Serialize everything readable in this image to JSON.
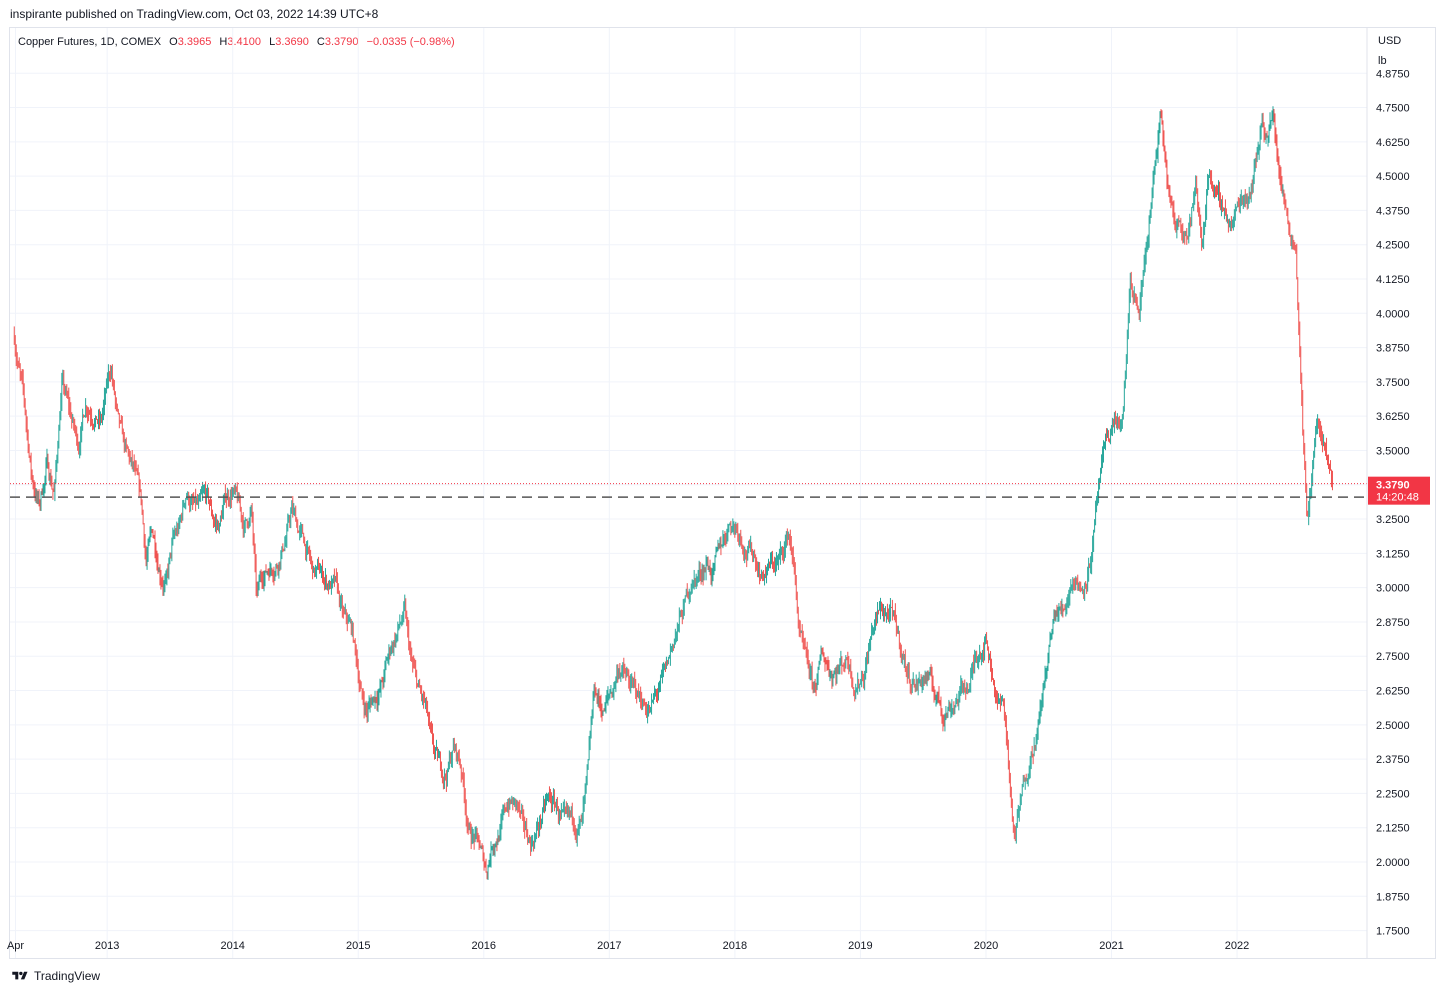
{
  "published": "inspirante published on TradingView.com, Oct 03, 2022 14:39 UTC+8",
  "legend": {
    "symbol": "Copper Futures, 1D, COMEX",
    "o_label": "O",
    "o_value": "3.3965",
    "h_label": "H",
    "h_value": "3.4100",
    "l_label": "L",
    "l_value": "3.3690",
    "c_label": "C",
    "c_value": "3.3790",
    "change": "−0.0335 (−0.98%)"
  },
  "price_axis": {
    "currency": "USD",
    "unit": "lb"
  },
  "last_price": {
    "value": "3.3790",
    "countdown": "14:20:48"
  },
  "footer": {
    "brand": "TradingView"
  },
  "colors": {
    "up": "#26a69a",
    "down": "#ef5350",
    "grid": "#f0f3fa",
    "last_label_bg": "#f23645",
    "level_line": "#555555"
  },
  "chart_data": {
    "type": "candlestick",
    "symbol": "Copper Futures",
    "interval": "1D",
    "y_unit": "USD/lb",
    "ylim": [
      1.65,
      5.04
    ],
    "y_ticks": [
      1.75,
      1.875,
      2.0,
      2.125,
      2.25,
      2.375,
      2.5,
      2.625,
      2.75,
      2.875,
      3.0,
      3.125,
      3.25,
      3.375,
      3.5,
      3.625,
      3.75,
      3.875,
      4.0,
      4.125,
      4.25,
      4.375,
      4.5,
      4.625,
      4.75,
      4.875
    ],
    "y_tick_labels": [
      "1.7500",
      "1.8750",
      "2.0000",
      "2.1250",
      "2.2500",
      "2.3750",
      "2.5000",
      "2.6250",
      "2.7500",
      "2.8750",
      "3.0000",
      "3.1250",
      "3.2500",
      "3.3750",
      "3.5000",
      "3.6250",
      "3.7500",
      "3.8750",
      "4.0000",
      "4.1250",
      "4.2500",
      "4.3750",
      "4.5000",
      "4.6250",
      "4.7500",
      "4.8750"
    ],
    "x_range": [
      2012.25,
      2022.82
    ],
    "x_ticks": [
      2012.27,
      2013,
      2014,
      2015,
      2016,
      2017,
      2018,
      2019,
      2020,
      2021,
      2022
    ],
    "x_tick_labels": [
      "Apr",
      "2013",
      "2014",
      "2015",
      "2016",
      "2017",
      "2018",
      "2019",
      "2020",
      "2021",
      "2022"
    ],
    "horizontal_level": 3.33,
    "last_close": 3.379,
    "price_path": [
      [
        2012.26,
        3.92
      ],
      [
        2012.33,
        3.7
      ],
      [
        2012.4,
        3.4
      ],
      [
        2012.46,
        3.3
      ],
      [
        2012.52,
        3.45
      ],
      [
        2012.58,
        3.35
      ],
      [
        2012.64,
        3.75
      ],
      [
        2012.71,
        3.62
      ],
      [
        2012.77,
        3.52
      ],
      [
        2012.83,
        3.68
      ],
      [
        2012.89,
        3.65
      ],
      [
        2012.95,
        3.6
      ],
      [
        2013.03,
        3.8
      ],
      [
        2013.09,
        3.58
      ],
      [
        2013.15,
        3.48
      ],
      [
        2013.21,
        3.42
      ],
      [
        2013.27,
        3.3
      ],
      [
        2013.31,
        3.1
      ],
      [
        2013.36,
        3.2
      ],
      [
        2013.42,
        3.08
      ],
      [
        2013.47,
        3.02
      ],
      [
        2013.52,
        3.15
      ],
      [
        2013.58,
        3.22
      ],
      [
        2013.63,
        3.35
      ],
      [
        2013.68,
        3.3
      ],
      [
        2013.73,
        3.28
      ],
      [
        2013.79,
        3.32
      ],
      [
        2013.84,
        3.25
      ],
      [
        2013.89,
        3.22
      ],
      [
        2013.94,
        3.32
      ],
      [
        2014.0,
        3.36
      ],
      [
        2014.04,
        3.3
      ],
      [
        2014.09,
        3.22
      ],
      [
        2014.15,
        3.28
      ],
      [
        2014.19,
        2.95
      ],
      [
        2014.24,
        3.05
      ],
      [
        2014.3,
        3.08
      ],
      [
        2014.35,
        3.1
      ],
      [
        2014.42,
        3.18
      ],
      [
        2014.47,
        3.28
      ],
      [
        2014.52,
        3.22
      ],
      [
        2014.58,
        3.15
      ],
      [
        2014.64,
        3.05
      ],
      [
        2014.7,
        3.05
      ],
      [
        2014.76,
        3.02
      ],
      [
        2014.82,
        3.0
      ],
      [
        2014.88,
        2.88
      ],
      [
        2014.95,
        2.84
      ],
      [
        2015.03,
        2.6
      ],
      [
        2015.07,
        2.55
      ],
      [
        2015.12,
        2.6
      ],
      [
        2015.19,
        2.65
      ],
      [
        2015.26,
        2.78
      ],
      [
        2015.32,
        2.85
      ],
      [
        2015.37,
        2.9
      ],
      [
        2015.42,
        2.72
      ],
      [
        2015.48,
        2.62
      ],
      [
        2015.54,
        2.55
      ],
      [
        2015.58,
        2.42
      ],
      [
        2015.63,
        2.35
      ],
      [
        2015.7,
        2.32
      ],
      [
        2015.76,
        2.42
      ],
      [
        2015.82,
        2.35
      ],
      [
        2015.88,
        2.12
      ],
      [
        2015.94,
        2.08
      ],
      [
        2016.02,
        1.97
      ],
      [
        2016.07,
        2.08
      ],
      [
        2016.13,
        2.12
      ],
      [
        2016.2,
        2.22
      ],
      [
        2016.27,
        2.2
      ],
      [
        2016.32,
        2.1
      ],
      [
        2016.38,
        2.07
      ],
      [
        2016.45,
        2.15
      ],
      [
        2016.51,
        2.22
      ],
      [
        2016.58,
        2.2
      ],
      [
        2016.65,
        2.12
      ],
      [
        2016.71,
        2.14
      ],
      [
        2016.78,
        2.13
      ],
      [
        2016.83,
        2.3
      ],
      [
        2016.88,
        2.62
      ],
      [
        2016.95,
        2.55
      ],
      [
        2017.02,
        2.62
      ],
      [
        2017.08,
        2.72
      ],
      [
        2017.14,
        2.66
      ],
      [
        2017.2,
        2.62
      ],
      [
        2017.27,
        2.58
      ],
      [
        2017.33,
        2.56
      ],
      [
        2017.39,
        2.62
      ],
      [
        2017.45,
        2.68
      ],
      [
        2017.52,
        2.82
      ],
      [
        2017.58,
        2.9
      ],
      [
        2017.65,
        3.02
      ],
      [
        2017.72,
        3.05
      ],
      [
        2017.78,
        3.1
      ],
      [
        2017.83,
        3.05
      ],
      [
        2017.89,
        3.15
      ],
      [
        2017.96,
        3.25
      ],
      [
        2018.03,
        3.22
      ],
      [
        2018.09,
        3.15
      ],
      [
        2018.15,
        3.12
      ],
      [
        2018.22,
        3.05
      ],
      [
        2018.29,
        3.08
      ],
      [
        2018.36,
        3.1
      ],
      [
        2018.43,
        3.2
      ],
      [
        2018.47,
        3.08
      ],
      [
        2018.51,
        2.85
      ],
      [
        2018.56,
        2.72
      ],
      [
        2018.63,
        2.62
      ],
      [
        2018.7,
        2.75
      ],
      [
        2018.77,
        2.7
      ],
      [
        2018.84,
        2.72
      ],
      [
        2018.9,
        2.75
      ],
      [
        2018.96,
        2.65
      ],
      [
        2019.03,
        2.7
      ],
      [
        2019.1,
        2.86
      ],
      [
        2019.17,
        2.92
      ],
      [
        2019.24,
        2.9
      ],
      [
        2019.31,
        2.8
      ],
      [
        2019.38,
        2.68
      ],
      [
        2019.45,
        2.65
      ],
      [
        2019.52,
        2.68
      ],
      [
        2019.59,
        2.62
      ],
      [
        2019.66,
        2.55
      ],
      [
        2019.73,
        2.58
      ],
      [
        2019.8,
        2.62
      ],
      [
        2019.87,
        2.65
      ],
      [
        2019.94,
        2.78
      ],
      [
        2020.0,
        2.82
      ],
      [
        2020.05,
        2.7
      ],
      [
        2020.1,
        2.58
      ],
      [
        2020.15,
        2.55
      ],
      [
        2020.2,
        2.22
      ],
      [
        2020.23,
        2.08
      ],
      [
        2020.28,
        2.22
      ],
      [
        2020.35,
        2.4
      ],
      [
        2020.42,
        2.5
      ],
      [
        2020.48,
        2.7
      ],
      [
        2020.55,
        2.9
      ],
      [
        2020.62,
        2.92
      ],
      [
        2020.69,
        3.05
      ],
      [
        2020.76,
        3.0
      ],
      [
        2020.83,
        3.1
      ],
      [
        2020.9,
        3.35
      ],
      [
        2020.96,
        3.52
      ],
      [
        2021.03,
        3.62
      ],
      [
        2021.09,
        3.58
      ],
      [
        2021.15,
        4.1
      ],
      [
        2021.22,
        4.0
      ],
      [
        2021.29,
        4.3
      ],
      [
        2021.34,
        4.5
      ],
      [
        2021.39,
        4.7
      ],
      [
        2021.45,
        4.45
      ],
      [
        2021.5,
        4.3
      ],
      [
        2021.55,
        4.35
      ],
      [
        2021.61,
        4.3
      ],
      [
        2021.67,
        4.45
      ],
      [
        2021.72,
        4.25
      ],
      [
        2021.78,
        4.55
      ],
      [
        2021.84,
        4.4
      ],
      [
        2021.9,
        4.38
      ],
      [
        2021.96,
        4.32
      ],
      [
        2022.03,
        4.42
      ],
      [
        2022.09,
        4.45
      ],
      [
        2022.15,
        4.55
      ],
      [
        2022.2,
        4.72
      ],
      [
        2022.24,
        4.65
      ],
      [
        2022.29,
        4.72
      ],
      [
        2022.33,
        4.55
      ],
      [
        2022.38,
        4.4
      ],
      [
        2022.43,
        4.3
      ],
      [
        2022.47,
        4.25
      ],
      [
        2022.51,
        3.75
      ],
      [
        2022.54,
        3.4
      ],
      [
        2022.56,
        3.22
      ],
      [
        2022.6,
        3.45
      ],
      [
        2022.64,
        3.6
      ],
      [
        2022.67,
        3.55
      ],
      [
        2022.71,
        3.45
      ],
      [
        2022.75,
        3.38
      ],
      [
        2022.76,
        3.379
      ]
    ]
  }
}
